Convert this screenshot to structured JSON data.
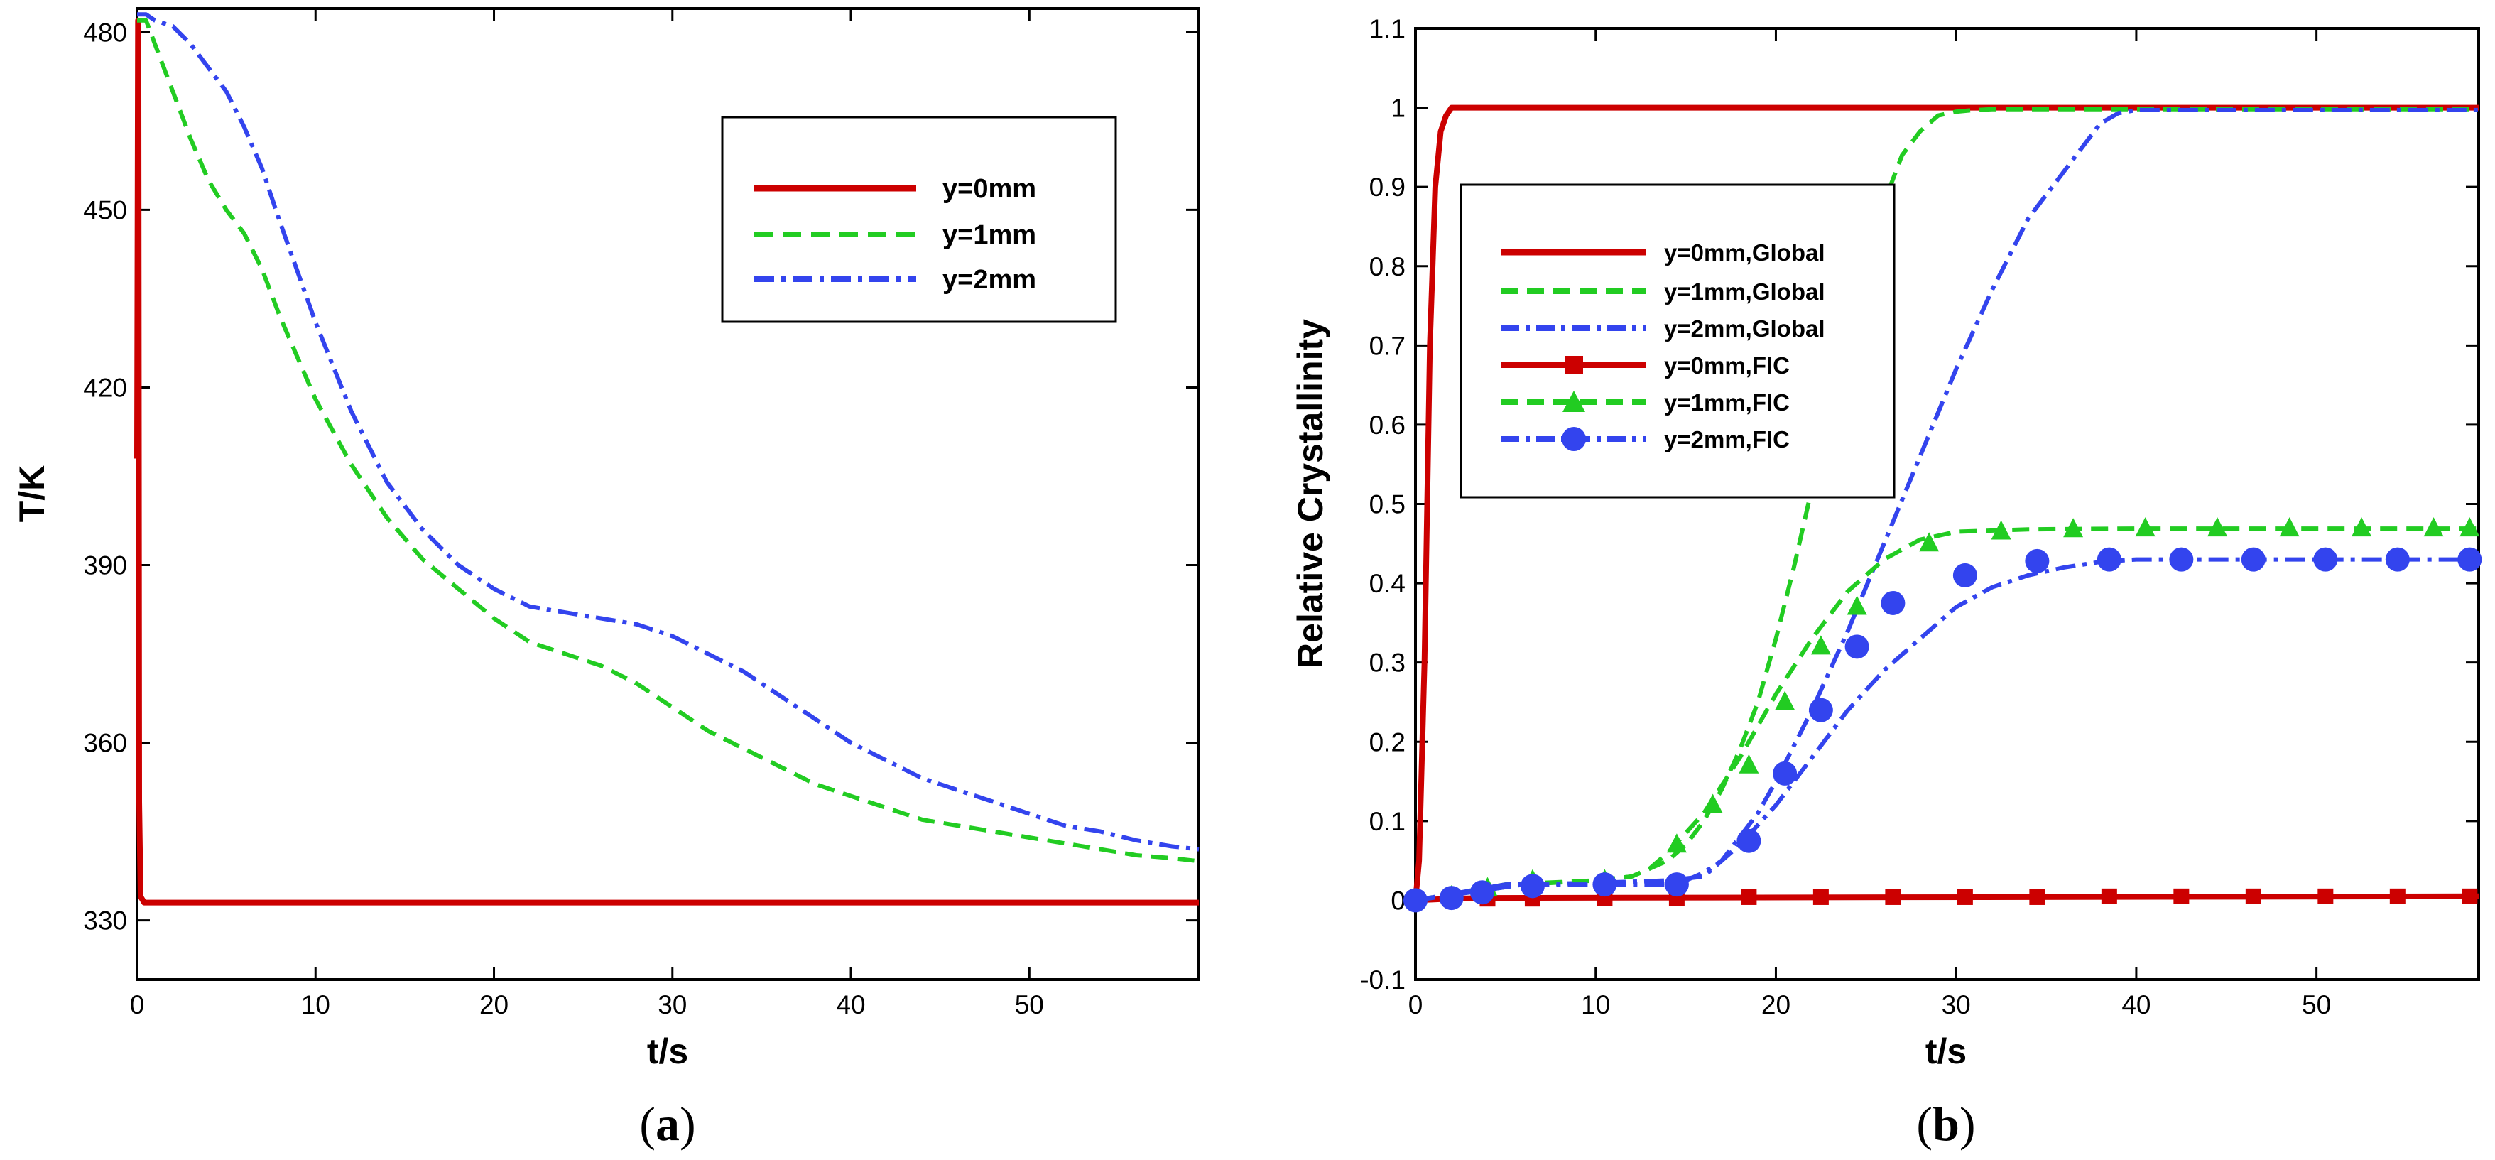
{
  "colors": {
    "red": "#cc0000",
    "green": "#22cc22",
    "blue": "#3344ee"
  },
  "chart_data": [
    {
      "panel": "a",
      "type": "line",
      "xlabel": "t/s",
      "ylabel": "T/K",
      "xlim": [
        0,
        59.5
      ],
      "ylim": [
        320,
        484
      ],
      "xticks": [
        0,
        10,
        20,
        30,
        40,
        50
      ],
      "yticks": [
        330,
        360,
        390,
        420,
        450,
        480
      ],
      "legend_position": "top-right",
      "series": [
        {
          "name": "y=0mm",
          "style": "solid",
          "color": "red",
          "x": [
            0,
            0.05,
            0.08,
            0.12,
            0.2,
            0.4,
            59.5
          ],
          "y": [
            408,
            482,
            470,
            350,
            334,
            333,
            333
          ]
        },
        {
          "name": "y=1mm",
          "style": "dashed",
          "color": "green",
          "x": [
            0,
            0.5,
            1,
            2,
            3,
            4,
            5,
            6,
            7,
            8,
            10,
            12,
            14,
            16,
            18,
            20,
            22,
            24,
            26,
            28,
            30,
            32,
            34,
            36,
            38,
            40,
            42,
            44,
            46,
            48,
            50,
            52,
            54,
            56,
            58,
            59.5
          ],
          "y": [
            482,
            482,
            478,
            470,
            462,
            455,
            450,
            446,
            440,
            432,
            418,
            407,
            398,
            391,
            386,
            381,
            377,
            375,
            373,
            370,
            366,
            362,
            359,
            356,
            353,
            351,
            349,
            347,
            346,
            345,
            344,
            343,
            342,
            341,
            340.5,
            340
          ]
        },
        {
          "name": "y=2mm",
          "style": "dashdot",
          "color": "blue",
          "x": [
            0,
            0.5,
            1,
            2,
            3,
            4,
            5,
            6,
            7,
            8,
            10,
            12,
            14,
            16,
            18,
            20,
            22,
            24,
            26,
            28,
            30,
            32,
            34,
            36,
            38,
            40,
            42,
            44,
            46,
            48,
            50,
            52,
            54,
            56,
            58,
            59.5
          ],
          "y": [
            483,
            483,
            482,
            481,
            478,
            474,
            470,
            464,
            457,
            448,
            431,
            416,
            404,
            396,
            390,
            386,
            383,
            382,
            381,
            380,
            378,
            375,
            372,
            368,
            364,
            360,
            357,
            354,
            352,
            350,
            348,
            346,
            345,
            343.5,
            342.5,
            342
          ]
        }
      ]
    },
    {
      "panel": "b",
      "type": "line",
      "xlabel": "t/s",
      "ylabel": "Relative Crystallinity",
      "xlim": [
        0,
        59
      ],
      "ylim": [
        -0.1,
        1.1
      ],
      "xticks": [
        0,
        10,
        20,
        30,
        40,
        50
      ],
      "yticks": [
        -0.1,
        0,
        0.1,
        0.2,
        0.3,
        0.4,
        0.5,
        0.6,
        0.7,
        0.8,
        0.9,
        1,
        1.1
      ],
      "legend_position": "top-left",
      "series": [
        {
          "name": "y=0mm,Global",
          "style": "solid",
          "color": "red",
          "marker": "",
          "x": [
            0,
            0.2,
            0.5,
            0.8,
            1.1,
            1.4,
            1.7,
            2.0,
            2.5,
            59
          ],
          "y": [
            0,
            0.05,
            0.3,
            0.7,
            0.9,
            0.97,
            0.99,
            1.0,
            1.0,
            1.0
          ]
        },
        {
          "name": "y=1mm,Global",
          "style": "dashed",
          "color": "green",
          "marker": "",
          "x": [
            0,
            5,
            10,
            12,
            13,
            14,
            15,
            16,
            17,
            18,
            19,
            20,
            21,
            22,
            23,
            24,
            25,
            26,
            27,
            28,
            29,
            30,
            31,
            32,
            59
          ],
          "y": [
            0,
            0.02,
            0.025,
            0.03,
            0.04,
            0.05,
            0.07,
            0.1,
            0.14,
            0.19,
            0.25,
            0.33,
            0.42,
            0.52,
            0.62,
            0.72,
            0.81,
            0.88,
            0.94,
            0.97,
            0.99,
            0.995,
            0.997,
            0.998,
            0.998
          ]
        },
        {
          "name": "y=2mm,Global",
          "style": "dashdot",
          "color": "blue",
          "marker": "",
          "x": [
            0,
            5,
            10,
            14,
            16,
            17,
            18,
            19,
            20,
            22,
            24,
            26,
            28,
            30,
            32,
            34,
            36,
            37,
            38,
            39,
            40,
            59
          ],
          "y": [
            0,
            0.02,
            0.022,
            0.025,
            0.03,
            0.05,
            0.08,
            0.11,
            0.15,
            0.24,
            0.34,
            0.45,
            0.56,
            0.67,
            0.77,
            0.86,
            0.92,
            0.95,
            0.98,
            0.993,
            0.997,
            0.997
          ]
        },
        {
          "name": "y=0mm,FIC",
          "style": "solid",
          "color": "red",
          "marker": "square",
          "x": [
            0,
            2,
            4,
            59
          ],
          "y": [
            0,
            0.002,
            0.003,
            0.005
          ],
          "marker_x": [
            0,
            2,
            4,
            6.5,
            10.5,
            14.5,
            18.5,
            22.5,
            26.5,
            30.5,
            34.5,
            38.5,
            42.5,
            46.5,
            50.5,
            54.5,
            58.5
          ],
          "marker_y": [
            0,
            0.002,
            0.002,
            0.002,
            0.003,
            0.003,
            0.004,
            0.004,
            0.004,
            0.004,
            0.004,
            0.005,
            0.005,
            0.005,
            0.005,
            0.005,
            0.005
          ]
        },
        {
          "name": "y=1mm,FIC",
          "style": "dashed",
          "color": "green",
          "marker": "triangle",
          "x": [
            0,
            3,
            6,
            10,
            12,
            13,
            14,
            16,
            18,
            20,
            22,
            24,
            26,
            28,
            30,
            34,
            40,
            59
          ],
          "y": [
            0,
            0.01,
            0.02,
            0.025,
            0.03,
            0.04,
            0.06,
            0.11,
            0.18,
            0.26,
            0.33,
            0.39,
            0.43,
            0.455,
            0.465,
            0.468,
            0.469,
            0.469
          ],
          "marker_x": [
            0,
            2,
            4,
            6.5,
            10.5,
            14.5,
            16.5,
            18.5,
            20.5,
            22.5,
            24.5,
            28.5,
            32.5,
            36.5,
            40.5,
            44.5,
            48.5,
            52.5,
            56.5,
            58.5
          ],
          "marker_y": [
            0,
            0.005,
            0.015,
            0.025,
            0.025,
            0.07,
            0.12,
            0.17,
            0.25,
            0.32,
            0.37,
            0.45,
            0.465,
            0.468,
            0.469,
            0.469,
            0.469,
            0.469,
            0.469,
            0.469
          ]
        },
        {
          "name": "y=2mm,FIC",
          "style": "dashdot",
          "color": "blue",
          "marker": "circle",
          "x": [
            0,
            3,
            6,
            10,
            14,
            15,
            16,
            17,
            18,
            20,
            22,
            24,
            26,
            28,
            30,
            32,
            34,
            36,
            38,
            40,
            59
          ],
          "y": [
            0,
            0.01,
            0.02,
            0.02,
            0.02,
            0.025,
            0.035,
            0.05,
            0.07,
            0.12,
            0.18,
            0.24,
            0.29,
            0.33,
            0.37,
            0.395,
            0.41,
            0.42,
            0.427,
            0.43,
            0.43
          ],
          "marker_x": [
            0,
            2,
            3.7,
            6.5,
            10.5,
            14.5,
            18.5,
            20.5,
            22.5,
            24.5,
            26.5,
            30.5,
            34.5,
            38.5,
            42.5,
            46.5,
            50.5,
            54.5,
            58.5
          ],
          "marker_y": [
            0,
            0.003,
            0.01,
            0.018,
            0.02,
            0.02,
            0.075,
            0.16,
            0.24,
            0.32,
            0.375,
            0.41,
            0.428,
            0.43,
            0.43,
            0.43,
            0.43,
            0.43,
            0.43
          ]
        }
      ]
    }
  ],
  "captions": {
    "a_open": "(",
    "a_letter": "a",
    "a_close": ")",
    "b_open": "(",
    "b_letter": "b",
    "b_close": ")"
  }
}
